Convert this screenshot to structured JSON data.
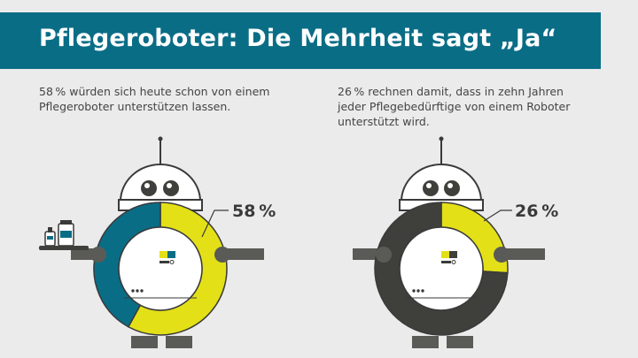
{
  "title": "Pflegeroboter: Die Mehrheit sagt „Ja“",
  "colors": {
    "banner": "#0a6d86",
    "accent_yellow": "#e3e018",
    "left_remainder": "#0a6d86",
    "right_remainder": "#3f403c",
    "robot_outline": "#3a3a3a",
    "robot_gray": "#5a5b57",
    "background": "#ebebeb"
  },
  "captions": {
    "left": "58 % würden sich heute schon von einem Pflegeroboter unterstützen lassen.",
    "right": "26 % rechnen damit, dass in zehn Jahren jeder Pfle­gebedürftige von einem Roboter unterstützt wird."
  },
  "chart_data": [
    {
      "type": "pie",
      "variant": "donut",
      "values": [
        58,
        42
      ],
      "value_label": "58 %",
      "highlight_color": "#e3e018",
      "remainder_color": "#0a6d86"
    },
    {
      "type": "pie",
      "variant": "donut",
      "values": [
        26,
        74
      ],
      "value_label": "26 %",
      "highlight_color": "#e3e018",
      "remainder_color": "#3f403c"
    }
  ]
}
